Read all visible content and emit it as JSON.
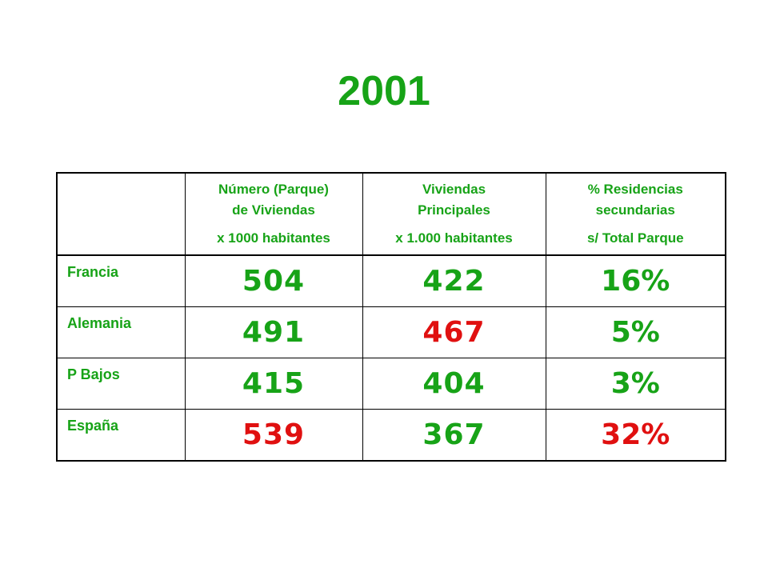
{
  "title": "2001",
  "colors": {
    "accent_green": "#17a317",
    "highlight_red": "#e01010"
  },
  "table": {
    "headers": [
      {
        "line1": "Número (Parque)",
        "line2": "de Viviendas",
        "unit": "x 1000 habitantes"
      },
      {
        "line1": "Viviendas",
        "line2": "Principales",
        "unit": "x 1.000 habitantes"
      },
      {
        "line1": "% Residencias",
        "line2": "secundarias",
        "unit": "s/ Total Parque"
      }
    ],
    "rows": [
      {
        "country": "Francia",
        "parque": "504",
        "principales": "422",
        "secundarias": "16%",
        "parque_highlight": false,
        "principales_highlight": false,
        "secundarias_highlight": false
      },
      {
        "country": "Alemania",
        "parque": "491",
        "principales": "467",
        "secundarias": "5%",
        "parque_highlight": false,
        "principales_highlight": true,
        "secundarias_highlight": false
      },
      {
        "country": "P Bajos",
        "parque": "415",
        "principales": "404",
        "secundarias": "3%",
        "parque_highlight": false,
        "principales_highlight": false,
        "secundarias_highlight": false
      },
      {
        "country": "España",
        "parque": "539",
        "principales": "367",
        "secundarias": "32%",
        "parque_highlight": true,
        "principales_highlight": false,
        "secundarias_highlight": true
      }
    ]
  }
}
